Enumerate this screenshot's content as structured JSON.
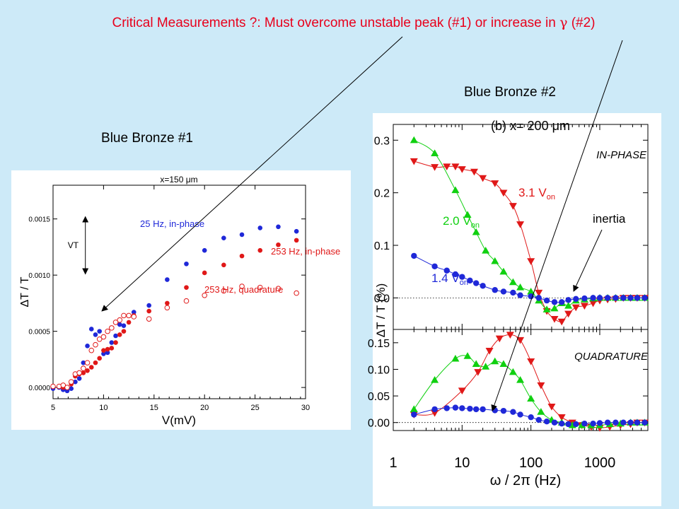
{
  "slide": {
    "headline_prefix": "Critical Measurements ?: Must overcome unstable peak (#1) or increase in",
    "headline_symbol": "γ",
    "headline_suffix": "(#2)",
    "left_caption": "Blue Bronze #1",
    "right_caption": "Blue Bronze #2",
    "colors": {
      "background": "#cdeaf8",
      "headline": "#e8001c",
      "blue": "#1f28d8",
      "red": "#e01818",
      "green": "#10d010"
    }
  },
  "chart_data": [
    {
      "type": "scatter",
      "panel": "blue-bronze-1",
      "title": "x=150 μm",
      "xlabel": "V(mV)",
      "ylabel": "ΔT / T",
      "xlim": [
        5,
        30
      ],
      "ylim": [
        -0.0001,
        0.0018
      ],
      "xticks": [
        5,
        10,
        15,
        20,
        25,
        30
      ],
      "yticks": [
        0.0,
        0.0005,
        0.001,
        0.0015
      ],
      "ytick_labels": [
        "0.0000",
        "0.0005",
        "0.0010",
        "0.0015"
      ],
      "annotation": "VT",
      "vt_marker": [
        0.00101,
        0.00152
      ],
      "series": [
        {
          "name": "25 Hz, in-phase",
          "color": "#1f28d8",
          "marker": "filled",
          "x": [
            5.0,
            5.6,
            6.0,
            6.4,
            6.8,
            7.2,
            7.6,
            8.0,
            8.4,
            8.8,
            9.2,
            9.6,
            10.0,
            10.4,
            10.8,
            11.2,
            11.6,
            12.0,
            12.5,
            13.0,
            14.5,
            16.3,
            18.2,
            20.0,
            21.9,
            23.7,
            25.5,
            27.3,
            29.1
          ],
          "y": [
            -1e-05,
            0.0,
            -2e-05,
            -3e-05,
            -1e-05,
            5e-05,
            8e-05,
            0.00022,
            0.00037,
            0.00052,
            0.00047,
            0.0005,
            0.0003,
            0.00031,
            0.0004,
            0.00046,
            0.00056,
            0.00055,
            0.00064,
            0.00067,
            0.00073,
            0.00096,
            0.0011,
            0.00122,
            0.00133,
            0.00136,
            0.00142,
            0.00143,
            0.00139
          ]
        },
        {
          "name": "253 Hz, in-phase",
          "color": "#e01818",
          "marker": "filled",
          "x": [
            5.0,
            5.6,
            6.0,
            6.4,
            6.8,
            7.2,
            7.6,
            8.0,
            8.4,
            8.8,
            9.2,
            9.6,
            10.0,
            10.4,
            10.8,
            11.2,
            11.6,
            12.0,
            12.5,
            13.0,
            14.5,
            16.3,
            18.2,
            20.0,
            21.9,
            23.7,
            25.5,
            27.3,
            29.1
          ],
          "y": [
            1e-05,
            1e-05,
            0.0,
            0.0,
            3e-05,
            0.0001,
            0.00012,
            0.00013,
            0.00015,
            0.00018,
            0.00022,
            0.00026,
            0.00033,
            0.00034,
            0.00035,
            0.0004,
            0.00047,
            0.0005,
            0.00058,
            0.00064,
            0.00068,
            0.00075,
            0.00089,
            0.00102,
            0.00109,
            0.00117,
            0.00122,
            0.00127,
            0.00131
          ]
        },
        {
          "name": "253 Hz, quadrature",
          "color": "#e01818",
          "marker": "open",
          "x": [
            5.0,
            5.6,
            6.0,
            6.4,
            6.8,
            7.2,
            7.6,
            8.0,
            8.4,
            8.8,
            9.2,
            9.6,
            10.0,
            10.4,
            10.8,
            11.2,
            11.6,
            12.0,
            12.5,
            13.0,
            14.5,
            16.3,
            18.2,
            20.0,
            21.9,
            23.7,
            25.5,
            27.3,
            29.1
          ],
          "y": [
            1e-05,
            1e-05,
            2e-05,
            0.0,
            5e-05,
            0.00012,
            0.00013,
            0.00017,
            0.00022,
            0.00033,
            0.00038,
            0.00043,
            0.00045,
            0.0005,
            0.00053,
            0.00058,
            0.0006,
            0.00064,
            0.00064,
            0.00063,
            0.00061,
            0.00071,
            0.00077,
            0.00082,
            0.00086,
            0.0009,
            0.00089,
            0.00088,
            0.00084
          ]
        }
      ]
    },
    {
      "type": "scatter",
      "panel": "blue-bronze-2",
      "title": "(b)   x= 200 μm",
      "xlabel": "ω / 2π  (Hz)",
      "ylabel": "ΔT / T  (%)",
      "xscale": "log",
      "xlim": [
        1,
        5000
      ],
      "xticks": [
        1,
        10,
        100,
        1000
      ],
      "xtick_labels": [
        "1",
        "10",
        "100",
        "1000"
      ],
      "annotations": [
        "IN-PHASE",
        "QUADRATURE",
        "inertia"
      ],
      "subplots": [
        {
          "name": "in-phase",
          "ylim": [
            -0.06,
            0.33
          ],
          "yticks": [
            0.0,
            0.1,
            0.2,
            0.3
          ],
          "ytick_labels": [
            "0.0",
            "0.1",
            "0.2",
            "0.3"
          ],
          "series": [
            {
              "name": "3.1 V",
              "name_sub": "on",
              "color": "#e01818",
              "marker": "triangle-down",
              "x": [
                2,
                4,
                6,
                8,
                10,
                15,
                20,
                30,
                40,
                55,
                70,
                100,
                130,
                170,
                220,
                280,
                350,
                450,
                600,
                800,
                1000,
                1300,
                1700,
                2200,
                2800,
                3500,
                4500
              ],
              "y": [
                0.26,
                0.249,
                0.25,
                0.25,
                0.245,
                0.24,
                0.228,
                0.218,
                0.2,
                0.175,
                0.14,
                0.07,
                0.01,
                -0.025,
                -0.04,
                -0.045,
                -0.03,
                -0.018,
                -0.015,
                -0.01,
                -0.005,
                -0.003,
                -0.002,
                0.0,
                0.0,
                0.0,
                0.0
              ]
            },
            {
              "name": "2.0 V",
              "name_sub": "on",
              "color": "#10d010",
              "marker": "triangle-up",
              "x": [
                2,
                4,
                8,
                12,
                16,
                22,
                30,
                40,
                55,
                70,
                100,
                130,
                170,
                220,
                280,
                350,
                450,
                600,
                800,
                1000,
                1300,
                1700,
                2200,
                2800,
                3500,
                4500
              ],
              "y": [
                0.3,
                0.275,
                0.205,
                0.158,
                0.125,
                0.09,
                0.07,
                0.05,
                0.03,
                0.02,
                0.012,
                -0.005,
                -0.022,
                -0.02,
                -0.01,
                -0.015,
                -0.005,
                -0.003,
                -0.001,
                0.0,
                0.0,
                0.0,
                0.0,
                0.0,
                0.0,
                0.0
              ]
            },
            {
              "name": "1.4 V",
              "name_sub": "on",
              "color": "#1f28d8",
              "marker": "circle",
              "x": [
                2,
                4,
                6,
                8,
                10,
                13,
                16,
                20,
                30,
                40,
                55,
                70,
                100,
                130,
                170,
                220,
                280,
                350,
                450,
                600,
                800,
                1000,
                1300,
                1700,
                2200,
                2800,
                3500,
                4500
              ],
              "y": [
                0.08,
                0.06,
                0.052,
                0.045,
                0.04,
                0.033,
                0.028,
                0.023,
                0.015,
                0.012,
                0.01,
                0.005,
                0.003,
                0.0,
                -0.005,
                -0.008,
                -0.008,
                -0.004,
                -0.002,
                -0.001,
                0.0,
                0.0,
                0.0,
                0.0,
                0.0,
                0.0,
                0.0,
                0.0
              ]
            }
          ]
        },
        {
          "name": "quadrature",
          "ylim": [
            -0.015,
            0.175
          ],
          "yticks": [
            0.0,
            0.05,
            0.1,
            0.15
          ],
          "ytick_labels": [
            "0.00",
            "0.05",
            "0.10",
            "0.15"
          ],
          "series": [
            {
              "name": "3.1 V",
              "name_sub": "on",
              "color": "#e01818",
              "marker": "triangle-down",
              "x": [
                2,
                4,
                10,
                17,
                25,
                35,
                50,
                70,
                100,
                140,
                200,
                280,
                400,
                550,
                750,
                1000,
                1400,
                2000,
                2800,
                3500,
                4500
              ],
              "y": [
                0.015,
                0.018,
                0.06,
                0.095,
                0.135,
                0.158,
                0.165,
                0.155,
                0.115,
                0.07,
                0.03,
                0.01,
                0.0,
                -0.005,
                -0.008,
                -0.01,
                -0.008,
                -0.005,
                -0.003,
                0.0,
                0.0
              ]
            },
            {
              "name": "2.0 V",
              "name_sub": "on",
              "color": "#10d010",
              "marker": "triangle-up",
              "x": [
                2,
                4,
                8,
                12,
                16,
                22,
                30,
                40,
                55,
                70,
                100,
                140,
                200,
                280,
                400,
                550,
                750,
                1000,
                1400,
                2000,
                2800,
                3500,
                4500
              ],
              "y": [
                0.025,
                0.08,
                0.12,
                0.125,
                0.11,
                0.105,
                0.115,
                0.11,
                0.095,
                0.08,
                0.045,
                0.02,
                0.005,
                0.0,
                -0.005,
                -0.005,
                -0.005,
                -0.005,
                -0.003,
                -0.002,
                0.0,
                0.0,
                0.0
              ]
            },
            {
              "name": "1.4 V",
              "name_sub": "on",
              "color": "#1f28d8",
              "marker": "circle",
              "x": [
                2,
                4,
                6,
                8,
                10,
                13,
                16,
                20,
                30,
                40,
                55,
                70,
                100,
                130,
                170,
                220,
                280,
                350,
                450,
                600,
                800,
                1000,
                1300,
                1700,
                2200,
                2800,
                3500,
                4500
              ],
              "y": [
                0.015,
                0.025,
                0.027,
                0.028,
                0.027,
                0.026,
                0.025,
                0.025,
                0.023,
                0.022,
                0.02,
                0.015,
                0.01,
                0.005,
                0.002,
                0.0,
                -0.002,
                -0.003,
                -0.003,
                -0.002,
                -0.002,
                -0.001,
                0.0,
                0.0,
                0.0,
                0.0,
                0.0,
                0.0
              ]
            }
          ]
        }
      ]
    }
  ]
}
